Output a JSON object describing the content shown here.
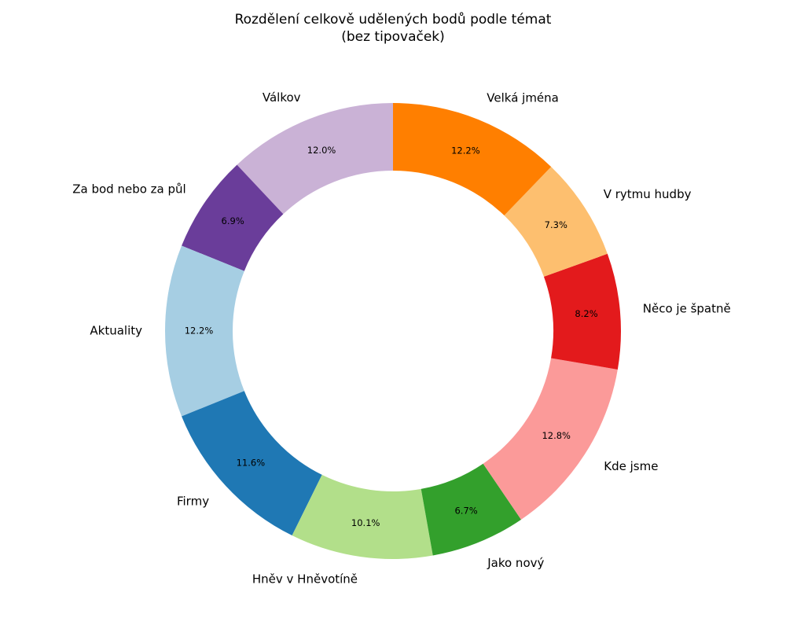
{
  "chart_data": {
    "type": "pie",
    "variant": "donut",
    "title_lines": [
      "Rozdělení celkově udělených bodů podle témat",
      "(bez tipovaček)"
    ],
    "start_angle_deg": 90,
    "direction": "counterclockwise",
    "slices": [
      {
        "label": "Válkov",
        "value": 12.0,
        "pct_label": "12.0%",
        "color": "#cab2d6"
      },
      {
        "label": "Za bod nebo za půl",
        "value": 6.9,
        "pct_label": "6.9%",
        "color": "#6a3d9a"
      },
      {
        "label": "Aktuality",
        "value": 12.2,
        "pct_label": "12.2%",
        "color": "#a6cee3"
      },
      {
        "label": "Firmy",
        "value": 11.6,
        "pct_label": "11.6%",
        "color": "#1f78b4"
      },
      {
        "label": "Hněv v Hněvotíně",
        "value": 10.1,
        "pct_label": "10.1%",
        "color": "#b2df8a"
      },
      {
        "label": "Jako nový",
        "value": 6.7,
        "pct_label": "6.7%",
        "color": "#33a02c"
      },
      {
        "label": "Kde jsme",
        "value": 12.8,
        "pct_label": "12.8%",
        "color": "#fb9a99"
      },
      {
        "label": "Něco je špatně",
        "value": 8.2,
        "pct_label": "8.2%",
        "color": "#e31a1c"
      },
      {
        "label": "V rytmu hudby",
        "value": 7.3,
        "pct_label": "7.3%",
        "color": "#fdbf6f"
      },
      {
        "label": "Velká jména",
        "value": 12.2,
        "pct_label": "12.2%",
        "color": "#ff7f00"
      }
    ]
  }
}
